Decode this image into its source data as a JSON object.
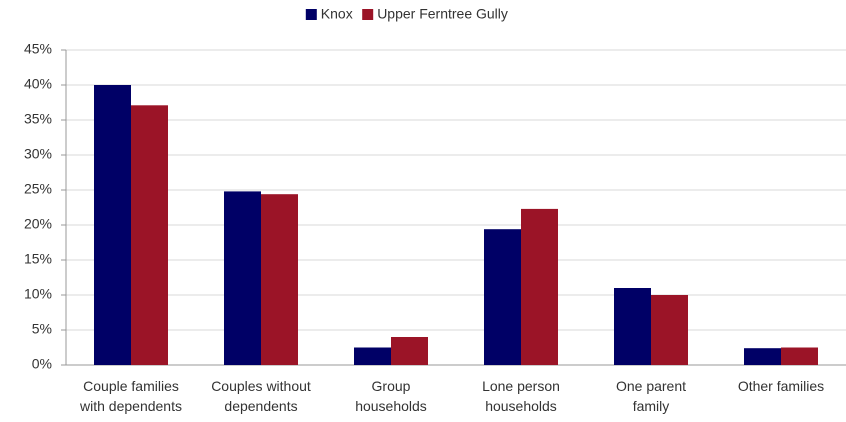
{
  "chart_data": {
    "type": "bar",
    "categories": [
      "Couple families\nwith dependents",
      "Couples without\ndependents",
      "Group\nhouseholds",
      "Lone person\nhouseholds",
      "One parent\nfamily",
      "Other families"
    ],
    "series": [
      {
        "name": "Knox",
        "color": "#000066",
        "values": [
          40,
          24.8,
          2.5,
          19.4,
          11,
          2.4
        ]
      },
      {
        "name": "Upper Ferntree Gully",
        "color": "#9b1427",
        "values": [
          37.1,
          24.4,
          4,
          22.3,
          10,
          2.5
        ]
      }
    ],
    "ylim": [
      0,
      45
    ],
    "yticks": [
      {
        "value": 0,
        "label": "0%"
      },
      {
        "value": 5,
        "label": "5%"
      },
      {
        "value": 10,
        "label": "10%"
      },
      {
        "value": 15,
        "label": "15%"
      },
      {
        "value": 20,
        "label": "20%"
      },
      {
        "value": 25,
        "label": "25%"
      },
      {
        "value": 30,
        "label": "30%"
      },
      {
        "value": 35,
        "label": "35%"
      },
      {
        "value": 40,
        "label": "40%"
      },
      {
        "value": 45,
        "label": "45%"
      }
    ],
    "grid": true,
    "legend": "top"
  }
}
